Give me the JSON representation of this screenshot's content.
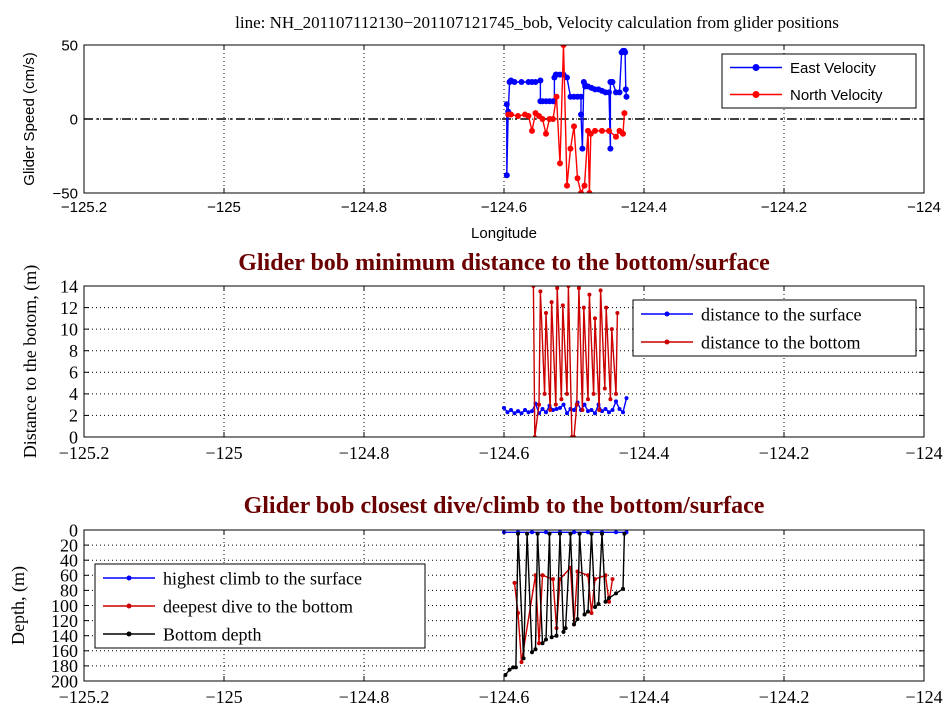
{
  "chart_data": [
    {
      "type": "line",
      "title": "line: NH_201107112130−201107121745_bob, Velocity calculation from glider positions",
      "xlabel": "Longitude",
      "ylabel": "Glider Speed (cm/s)",
      "xlim": [
        -125.2,
        -124.0
      ],
      "ylim": [
        -50,
        50
      ],
      "xticks": [
        -125.2,
        -125.0,
        -124.8,
        -124.6,
        -124.4,
        -124.2,
        -124.0
      ],
      "xtick_labels": [
        "−125.2",
        "−125",
        "−124.8",
        "−124.6",
        "−124.4",
        "−124.2",
        "−124"
      ],
      "yticks": [
        -50,
        0,
        50
      ],
      "ytick_labels": [
        "−50",
        "0",
        "50"
      ],
      "grid": "dotted",
      "legend_position": "top-right",
      "zero_line": true,
      "series": [
        {
          "name": "East Velocity",
          "color": "#0000ff",
          "x": [
            -124.596,
            -124.596,
            -124.594,
            -124.592,
            -124.59,
            -124.585,
            -124.575,
            -124.565,
            -124.56,
            -124.555,
            -124.548,
            -124.548,
            -124.545,
            -124.54,
            -124.535,
            -124.53,
            -124.528,
            -124.528,
            -124.526,
            -124.525,
            -124.52,
            -124.515,
            -124.51,
            -124.505,
            -124.5,
            -124.495,
            -124.49,
            -124.49,
            -124.488,
            -124.486,
            -124.484,
            -124.484,
            -124.48,
            -124.475,
            -124.47,
            -124.465,
            -124.46,
            -124.455,
            -124.45,
            -124.448,
            -124.448,
            -124.446,
            -124.445,
            -124.44,
            -124.435,
            -124.432,
            -124.43,
            -124.428,
            -124.427,
            -124.426,
            -124.425
          ],
          "y": [
            10,
            -38,
            5,
            25,
            26,
            25,
            25,
            25,
            25,
            25,
            26,
            12,
            12,
            12,
            12,
            12,
            12,
            28,
            30,
            30,
            30,
            30,
            28,
            15,
            15,
            15,
            15,
            3,
            -20,
            25,
            23,
            22,
            22,
            21,
            20,
            20,
            19,
            18,
            18,
            -20,
            25,
            25,
            25,
            18,
            18,
            45,
            46,
            46,
            45,
            20,
            15
          ]
        },
        {
          "name": "North Velocity",
          "color": "#ff0000",
          "x": [
            -124.594,
            -124.59,
            -124.58,
            -124.57,
            -124.565,
            -124.56,
            -124.555,
            -124.55,
            -124.545,
            -124.54,
            -124.535,
            -124.53,
            -124.525,
            -124.52,
            -124.515,
            -124.51,
            -124.505,
            -124.5,
            -124.495,
            -124.49,
            -124.485,
            -124.48,
            -124.478,
            -124.476,
            -124.47,
            -124.46,
            -124.45,
            -124.44,
            -124.435,
            -124.43,
            -124.428
          ],
          "y": [
            3,
            3,
            2,
            3,
            2,
            -8,
            4,
            2,
            0,
            -10,
            0,
            0,
            15,
            -30,
            50,
            -45,
            -20,
            -5,
            -40,
            -50,
            -45,
            -8,
            -50,
            -10,
            -8,
            -8,
            -8,
            -12,
            -8,
            -10,
            4
          ]
        }
      ]
    },
    {
      "type": "line",
      "title": "Glider bob minimum distance to the bottom/surface",
      "xlabel": "",
      "ylabel": "Distance to the botom, (m)",
      "xlim": [
        -125.2,
        -124.0
      ],
      "ylim": [
        0,
        14
      ],
      "xticks": [
        -125.2,
        -125.0,
        -124.8,
        -124.6,
        -124.4,
        -124.2,
        -124.0
      ],
      "xtick_labels": [
        "−125.2",
        "−125",
        "−124.8",
        "−124.6",
        "−124.4",
        "−124.2",
        "−124"
      ],
      "yticks": [
        0,
        2,
        4,
        6,
        8,
        10,
        12,
        14
      ],
      "ytick_labels": [
        "0",
        "2",
        "4",
        "6",
        "8",
        "10",
        "12",
        "14"
      ],
      "grid": "dotted",
      "legend_position": "top-right",
      "series": [
        {
          "name": "distance to the surface",
          "color": "#0000ff",
          "x": [
            -124.6,
            -124.595,
            -124.59,
            -124.585,
            -124.58,
            -124.575,
            -124.57,
            -124.565,
            -124.56,
            -124.555,
            -124.55,
            -124.545,
            -124.54,
            -124.535,
            -124.53,
            -124.525,
            -124.52,
            -124.515,
            -124.51,
            -124.505,
            -124.5,
            -124.495,
            -124.49,
            -124.485,
            -124.48,
            -124.475,
            -124.47,
            -124.465,
            -124.46,
            -124.455,
            -124.45,
            -124.445,
            -124.44,
            -124.435,
            -124.43,
            -124.425
          ],
          "y": [
            2.7,
            2.3,
            2.5,
            2.2,
            2.4,
            2.2,
            2.5,
            2.3,
            2.4,
            3.1,
            2.2,
            2.6,
            2.3,
            2.9,
            2.5,
            2.6,
            2.7,
            3.0,
            2.2,
            2.6,
            2.5,
            3.2,
            2.5,
            3.0,
            2.4,
            2.5,
            2.2,
            3.0,
            2.4,
            2.6,
            2.3,
            2.5,
            3.3,
            2.6,
            2.3,
            3.6
          ]
        },
        {
          "name": "distance to the bottom",
          "color": "#cc0000",
          "x": [
            -124.558,
            -124.556,
            -124.55,
            -124.548,
            -124.542,
            -124.54,
            -124.534,
            -124.532,
            -124.526,
            -124.524,
            -124.518,
            -124.516,
            -124.51,
            -124.508,
            -124.503,
            -124.5,
            -124.496,
            -124.493,
            -124.488,
            -124.486,
            -124.48,
            -124.478,
            -124.472,
            -124.47,
            -124.464,
            -124.462,
            -124.456,
            -124.454,
            -124.448,
            -124.446,
            -124.44,
            -124.438
          ],
          "y": [
            14,
            0,
            3,
            13.5,
            4,
            11.5,
            2.5,
            12.5,
            3,
            13.8,
            3.5,
            12.2,
            4,
            14,
            0,
            0,
            3,
            13.8,
            2.5,
            12,
            3.5,
            13.2,
            4,
            11,
            2.5,
            13.6,
            4.5,
            12,
            3.5,
            10,
            4,
            11.5
          ]
        }
      ]
    },
    {
      "type": "line",
      "title": "Glider bob closest dive/climb to the bottom/surface",
      "xlabel": "",
      "ylabel": "Depth, (m)",
      "xlim": [
        -125.2,
        -124.0
      ],
      "ylim": [
        200,
        0
      ],
      "y_reversed": true,
      "xticks": [
        -125.2,
        -125.0,
        -124.8,
        -124.6,
        -124.4,
        -124.2,
        -124.0
      ],
      "xtick_labels": [
        "−125.2",
        "−125",
        "−124.8",
        "−124.6",
        "−124.4",
        "−124.2",
        "−124"
      ],
      "yticks": [
        0,
        20,
        40,
        60,
        80,
        100,
        120,
        140,
        160,
        180,
        200
      ],
      "ytick_labels": [
        "0",
        "20",
        "40",
        "60",
        "80",
        "100",
        "120",
        "140",
        "160",
        "180",
        "200"
      ],
      "grid": "dotted",
      "legend_position": "middle-left",
      "series": [
        {
          "name": "highest climb to the surface",
          "color": "#0000ff",
          "x": [
            -124.6,
            -124.58,
            -124.56,
            -124.54,
            -124.52,
            -124.5,
            -124.48,
            -124.46,
            -124.44,
            -124.425
          ],
          "y": [
            3,
            3,
            3,
            3,
            3,
            3,
            3,
            3,
            3,
            3
          ]
        },
        {
          "name": "deepest dive to the bottom",
          "color": "#cc0000",
          "x": [
            -124.585,
            -124.58,
            -124.575,
            -124.555,
            -124.55,
            -124.545,
            -124.53,
            -124.525,
            -124.52,
            -124.505,
            -124.5,
            -124.495,
            -124.48,
            -124.475,
            -124.47,
            -124.455,
            -124.45,
            -124.445
          ],
          "y": [
            70,
            110,
            175,
            60,
            150,
            60,
            65,
            130,
            65,
            50,
            125,
            55,
            60,
            110,
            65,
            60,
            95,
            65
          ]
        },
        {
          "name": "Bottom depth",
          "color": "#000000",
          "x": [
            -124.598,
            -124.592,
            -124.587,
            -124.583,
            -124.58,
            -124.572,
            -124.567,
            -124.56,
            -124.555,
            -124.552,
            -124.545,
            -124.54,
            -124.535,
            -124.532,
            -124.525,
            -124.52,
            -124.515,
            -124.512,
            -124.505,
            -124.5,
            -124.495,
            -124.492,
            -124.485,
            -124.48,
            -124.475,
            -124.47,
            -124.465,
            -124.46,
            -124.455,
            -124.45,
            -124.44,
            -124.43,
            -124.428
          ],
          "y": [
            192,
            185,
            182,
            182,
            5,
            170,
            5,
            162,
            158,
            5,
            150,
            145,
            5,
            142,
            140,
            5,
            135,
            130,
            5,
            125,
            118,
            5,
            112,
            108,
            5,
            102,
            98,
            5,
            95,
            90,
            84,
            78,
            5
          ]
        }
      ]
    }
  ]
}
